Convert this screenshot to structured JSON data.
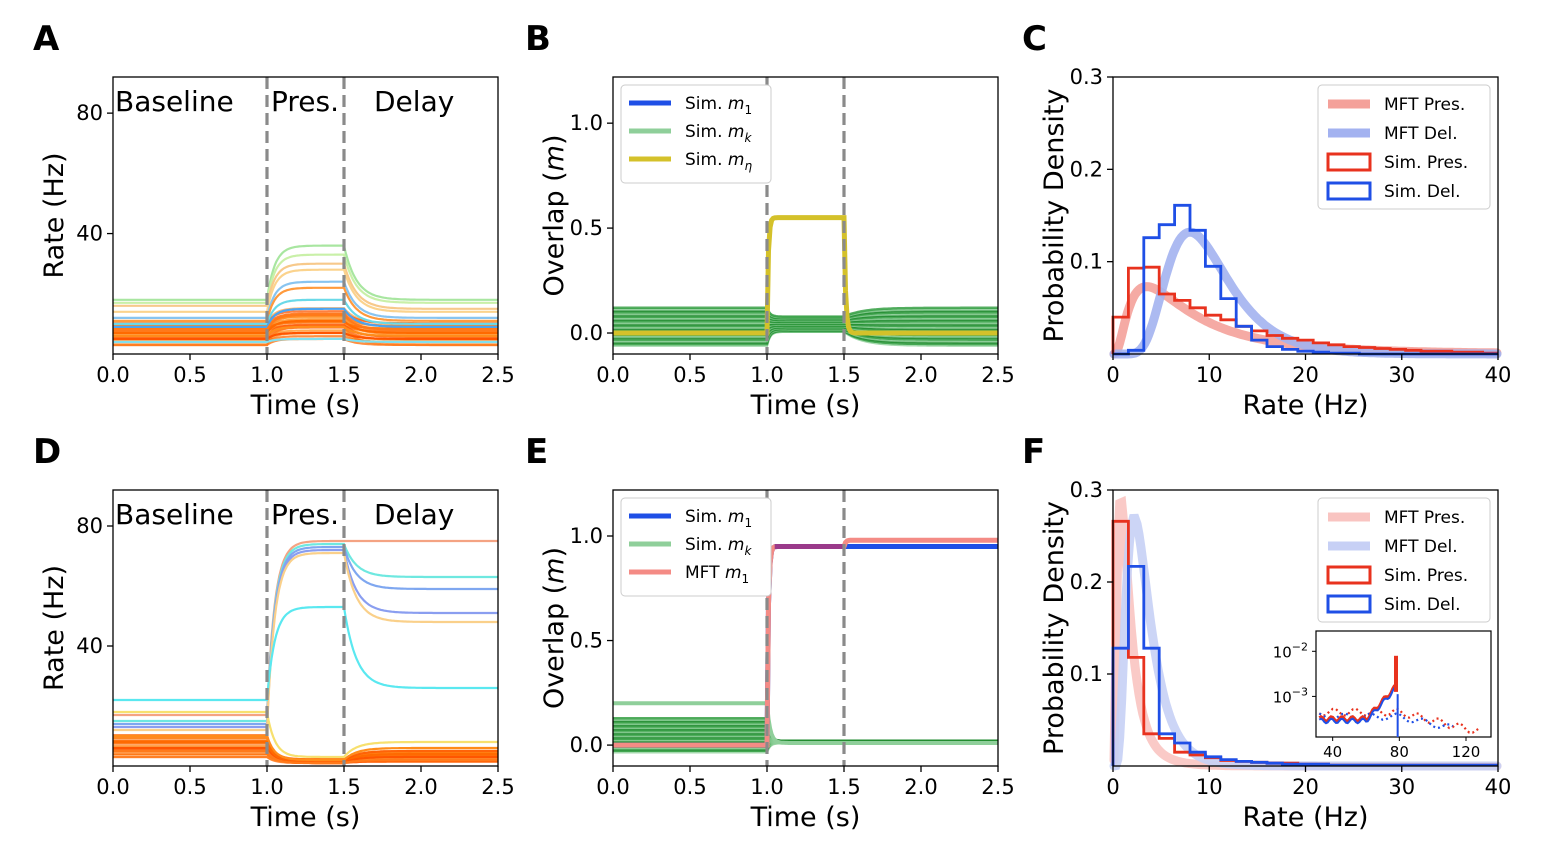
{
  "chart_data": [
    {
      "id": "A",
      "panel_label": "A",
      "type": "line",
      "xlabel": "Time (s)",
      "ylabel": "Rate (Hz)",
      "xlim": [
        0,
        2.5
      ],
      "ylim": [
        0,
        92
      ],
      "xticks": [
        0.0,
        0.5,
        1.0,
        1.5,
        2.0,
        2.5
      ],
      "xtick_labels": [
        "0.0",
        "0.5",
        "1.0",
        "1.5",
        "2.0",
        "2.5"
      ],
      "yticks": [
        40,
        80
      ],
      "ytick_labels": [
        "40",
        "80"
      ],
      "vlines": [
        1.0,
        1.5
      ],
      "phases": [
        "Baseline",
        "Pres.",
        "Delay"
      ],
      "series": [
        {
          "color": "#a8e6a0",
          "values": {
            "baseline": 18,
            "pres": 36,
            "delay": 18
          }
        },
        {
          "color": "#c9f0a8",
          "values": {
            "baseline": 17,
            "pres": 33,
            "delay": 17
          }
        },
        {
          "color": "#f7c98b",
          "values": {
            "baseline": 16,
            "pres": 30,
            "delay": 15
          }
        },
        {
          "color": "#fbd38d",
          "values": {
            "baseline": 14,
            "pres": 28,
            "delay": 14
          }
        },
        {
          "color": "#88c4f0",
          "values": {
            "baseline": 12,
            "pres": 24,
            "delay": 12
          }
        },
        {
          "color": "#ff9a3c",
          "values": {
            "baseline": 11,
            "pres": 22,
            "delay": 11
          }
        },
        {
          "color": "#6ad9e8",
          "values": {
            "baseline": 10,
            "pres": 18,
            "delay": 10
          }
        },
        {
          "color": "#4aa3f0",
          "values": {
            "baseline": 9,
            "pres": 15,
            "delay": 9
          }
        },
        {
          "color": "#ff7a1a",
          "values": {
            "baseline": 8,
            "pres": 13,
            "delay": 8
          }
        },
        {
          "color": "#ff6a00",
          "values": {
            "baseline": 7,
            "pres": 11,
            "delay": 7
          }
        },
        {
          "color": "#ff8c1a",
          "values": {
            "baseline": 6,
            "pres": 9,
            "delay": 6
          }
        },
        {
          "color": "#ff5500",
          "values": {
            "baseline": 5,
            "pres": 7,
            "delay": 5
          }
        },
        {
          "color": "#80e0f0",
          "values": {
            "baseline": 4,
            "pres": 5,
            "delay": 4
          }
        }
      ]
    },
    {
      "id": "B",
      "panel_label": "B",
      "type": "line",
      "xlabel": "Time (s)",
      "ylabel": "Overlap (m)",
      "xlim": [
        0,
        2.5
      ],
      "ylim": [
        -0.1,
        1.22
      ],
      "xticks": [
        0.0,
        0.5,
        1.0,
        1.5,
        2.0,
        2.5
      ],
      "xtick_labels": [
        "0.0",
        "0.5",
        "1.0",
        "1.5",
        "2.0",
        "2.5"
      ],
      "yticks": [
        0.0,
        0.5,
        1.0
      ],
      "ytick_labels": [
        "0.0",
        "0.5",
        "1.0"
      ],
      "vlines": [
        1.0,
        1.5
      ],
      "legend": [
        {
          "label": "Sim. m1",
          "color": "#1f4fe6"
        },
        {
          "label": "Sim. mk",
          "color": "#8fcf9a"
        },
        {
          "label": "Sim. mη",
          "color": "#d4c12a"
        }
      ],
      "series": [
        {
          "name": "Sim. mη",
          "color": "#d4c12a",
          "values": {
            "baseline": 0.0,
            "pres": 0.55,
            "delay": 0.0
          }
        }
      ]
    },
    {
      "id": "C",
      "panel_label": "C",
      "type": "histogram",
      "xlabel": "Rate (Hz)",
      "ylabel": "Probability Density",
      "xlim": [
        0,
        40
      ],
      "ylim": [
        0,
        0.3
      ],
      "xticks": [
        0,
        10,
        20,
        30,
        40
      ],
      "xtick_labels": [
        "0",
        "10",
        "20",
        "30",
        "40"
      ],
      "yticks": [
        0.1,
        0.2,
        0.3
      ],
      "ytick_labels": [
        "0.1",
        "0.2",
        "0.3"
      ],
      "legend": [
        {
          "label": "MFT Pres.",
          "color": "#f4a19a"
        },
        {
          "label": "MFT Del.",
          "color": "#a3b2f0"
        },
        {
          "label": "Sim. Pres.",
          "color": "#e8321e"
        },
        {
          "label": "Sim. Del.",
          "color": "#1f4fe6"
        }
      ],
      "bin_edges": [
        0,
        1.6,
        3.2,
        4.8,
        6.4,
        8,
        9.6,
        11.2,
        12.8,
        14.4,
        16,
        17.6,
        19.2,
        20.8,
        22.4,
        24,
        25.6,
        27.2,
        28.8,
        30.4,
        32,
        33.6,
        35.2,
        36.8,
        38.4,
        40
      ],
      "sim_pres": [
        0.04,
        0.093,
        0.094,
        0.065,
        0.058,
        0.05,
        0.042,
        0.037,
        0.03,
        0.025,
        0.02,
        0.017,
        0.015,
        0.012,
        0.01,
        0.008,
        0.007,
        0.006,
        0.005,
        0.004,
        0.003,
        0.003,
        0.002,
        0.002,
        0.001
      ],
      "sim_del": [
        0.0,
        0.004,
        0.126,
        0.14,
        0.161,
        0.134,
        0.095,
        0.06,
        0.03,
        0.015,
        0.008,
        0.005,
        0.003,
        0.002,
        0.001,
        0.001,
        0.0,
        0.0,
        0.0,
        0.0,
        0.0,
        0.0,
        0.0,
        0.0,
        0.0
      ],
      "mft_pres_peak": {
        "x": 3.5,
        "y": 0.073
      },
      "mft_del_peak": {
        "x": 8.0,
        "y": 0.132
      }
    },
    {
      "id": "D",
      "panel_label": "D",
      "type": "line",
      "xlabel": "Time (s)",
      "ylabel": "Rate (Hz)",
      "xlim": [
        0,
        2.5
      ],
      "ylim": [
        0,
        92
      ],
      "xticks": [
        0.0,
        0.5,
        1.0,
        1.5,
        2.0,
        2.5
      ],
      "xtick_labels": [
        "0.0",
        "0.5",
        "1.0",
        "1.5",
        "2.0",
        "2.5"
      ],
      "yticks": [
        40,
        80
      ],
      "ytick_labels": [
        "40",
        "80"
      ],
      "vlines": [
        1.0,
        1.5
      ],
      "phases": [
        "Baseline",
        "Pres.",
        "Delay"
      ],
      "series": [
        {
          "color": "#f4a383",
          "values": {
            "baseline": 17,
            "pres": 75,
            "delay": 75
          }
        },
        {
          "color": "#6ee8e0",
          "values": {
            "baseline": 15,
            "pres": 74,
            "delay": 63
          }
        },
        {
          "color": "#7fa7f0",
          "values": {
            "baseline": 14,
            "pres": 73,
            "delay": 59
          }
        },
        {
          "color": "#8a9ef0",
          "values": {
            "baseline": 13,
            "pres": 72,
            "delay": 51
          }
        },
        {
          "color": "#fad08a",
          "values": {
            "baseline": 12,
            "pres": 71,
            "delay": 48
          }
        },
        {
          "color": "#5ae8f0",
          "values": {
            "baseline": 22,
            "pres": 53,
            "delay": 26
          }
        },
        {
          "color": "#f7e06e",
          "values": {
            "baseline": 18,
            "pres": 3,
            "delay": 8
          }
        },
        {
          "color": "#ff8c1a",
          "values": {
            "baseline": 10,
            "pres": 2,
            "delay": 6
          }
        },
        {
          "color": "#ff6a00",
          "values": {
            "baseline": 8,
            "pres": 1,
            "delay": 4
          }
        },
        {
          "color": "#ff5500",
          "values": {
            "baseline": 6,
            "pres": 1,
            "delay": 3
          }
        },
        {
          "color": "#ff7a1a",
          "values": {
            "baseline": 5,
            "pres": 1,
            "delay": 2
          }
        }
      ]
    },
    {
      "id": "E",
      "panel_label": "E",
      "type": "line",
      "xlabel": "Time (s)",
      "ylabel": "Overlap (m)",
      "xlim": [
        0,
        2.5
      ],
      "ylim": [
        -0.1,
        1.22
      ],
      "xticks": [
        0.0,
        0.5,
        1.0,
        1.5,
        2.0,
        2.5
      ],
      "xtick_labels": [
        "0.0",
        "0.5",
        "1.0",
        "1.5",
        "2.0",
        "2.5"
      ],
      "yticks": [
        0.0,
        0.5,
        1.0
      ],
      "ytick_labels": [
        "0.0",
        "0.5",
        "1.0"
      ],
      "vlines": [
        1.0,
        1.5
      ],
      "legend": [
        {
          "label": "Sim. m1",
          "color": "#1f4fe6"
        },
        {
          "label": "Sim. mk",
          "color": "#8fcf9a"
        },
        {
          "label": "MFT m1",
          "color": "#f48b85"
        }
      ],
      "series": [
        {
          "name": "Sim. m1",
          "color": "#1f4fe6",
          "values": {
            "baseline": 0.0,
            "pres": 0.95,
            "delay": 0.95
          }
        },
        {
          "name": "MFT m1",
          "color": "#f48b85",
          "values": {
            "baseline": 0.0,
            "pres": 0.95,
            "delay": 0.98
          }
        }
      ]
    },
    {
      "id": "F",
      "panel_label": "F",
      "type": "histogram",
      "xlabel": "Rate (Hz)",
      "ylabel": "Probability Density",
      "xlim": [
        0,
        40
      ],
      "ylim": [
        0,
        0.3
      ],
      "xticks": [
        0,
        10,
        20,
        30,
        40
      ],
      "xtick_labels": [
        "0",
        "10",
        "20",
        "30",
        "40"
      ],
      "yticks": [
        0.1,
        0.2,
        0.3
      ],
      "ytick_labels": [
        "0.1",
        "0.2",
        "0.3"
      ],
      "legend": [
        {
          "label": "MFT Pres.",
          "color": "#f9c4c1"
        },
        {
          "label": "MFT Del.",
          "color": "#c7d0f5"
        },
        {
          "label": "Sim. Pres.",
          "color": "#e8321e"
        },
        {
          "label": "Sim. Del.",
          "color": "#1f4fe6"
        }
      ],
      "bin_edges": [
        0,
        1.6,
        3.2,
        4.8,
        6.4,
        8,
        9.6,
        11.2,
        12.8,
        14.4,
        16,
        17.6,
        19.2,
        20.8,
        22.4,
        24,
        25.6,
        27.2,
        28.8,
        30.4,
        32,
        33.6,
        35.2,
        36.8,
        38.4,
        40
      ],
      "sim_pres": [
        0.266,
        0.118,
        0.035,
        0.03,
        0.015,
        0.012,
        0.009,
        0.006,
        0.005,
        0.004,
        0.003,
        0.003,
        0.002,
        0.002,
        0.001,
        0.001,
        0.001,
        0.001,
        0.001,
        0.001,
        0.001,
        0.001,
        0.001,
        0.001,
        0.001
      ],
      "sim_del": [
        0.128,
        0.217,
        0.128,
        0.035,
        0.025,
        0.015,
        0.01,
        0.007,
        0.005,
        0.004,
        0.003,
        0.002,
        0.002,
        0.002,
        0.001,
        0.001,
        0.001,
        0.001,
        0.001,
        0.001,
        0.001,
        0.001,
        0.001,
        0.001,
        0.001
      ],
      "mft_pres_peak": {
        "x": 0.8,
        "y": 0.29
      },
      "mft_del_peak": {
        "x": 2.2,
        "y": 0.27
      },
      "inset": {
        "xlim": [
          30,
          135
        ],
        "xticks": [
          40,
          80,
          120
        ],
        "xtick_labels": [
          "40",
          "80",
          "120"
        ],
        "yticks_log": [
          -2,
          -3
        ],
        "ytick_labels": [
          "10−2",
          "10−3"
        ],
        "ylim_log": [
          -3.9,
          -1.55
        ]
      }
    }
  ]
}
